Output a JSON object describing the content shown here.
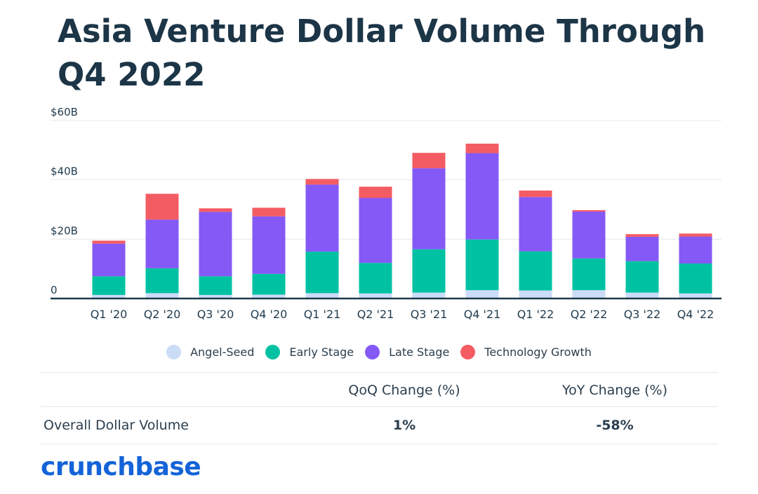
{
  "title": "Asia Venture Dollar Volume Through Q4 2022",
  "legend": {
    "angel_seed": "Angel-Seed",
    "early": "Early Stage",
    "late": "Late Stage",
    "growth": "Technology Growth"
  },
  "colors": {
    "angel_seed": "#cbdcf7",
    "early": "#00c2a2",
    "late": "#8459f6",
    "growth": "#f45c63",
    "axis": "#1f3a4d",
    "grid": "#e6e8eb",
    "brand": "#1463d8"
  },
  "table": {
    "header_qoq": "QoQ Change (%)",
    "header_yoy": "YoY Change (%)",
    "row_label": "Overall Dollar Volume",
    "qoq": "1%",
    "yoy": "-58%"
  },
  "brand": "crunchbase",
  "chart_data": {
    "type": "bar",
    "stacked": true,
    "title": "Asia Venture Dollar Volume Through Q4 2022",
    "xlabel": "",
    "ylabel": "",
    "ylim": [
      0,
      60
    ],
    "yticks": [
      0,
      20,
      40,
      60
    ],
    "ytick_labels": [
      "0",
      "$20B",
      "$40B",
      "$60B"
    ],
    "grid": true,
    "legend_position": "bottom",
    "categories": [
      "Q1 '20",
      "Q2 '20",
      "Q3 '20",
      "Q4 '20",
      "Q1 '21",
      "Q2 '21",
      "Q3 '21",
      "Q4 '21",
      "Q1 '22",
      "Q2 '22",
      "Q3 '22",
      "Q4 '22"
    ],
    "series": [
      {
        "name": "Angel-Seed",
        "color": "#cbdcf7",
        "values": [
          1.2,
          1.8,
          1.2,
          1.3,
          1.8,
          1.7,
          2.0,
          2.8,
          2.7,
          2.8,
          2.0,
          1.7
        ]
      },
      {
        "name": "Early Stage",
        "color": "#00c2a2",
        "values": [
          6.3,
          8.4,
          6.3,
          7.0,
          14.0,
          10.3,
          14.6,
          17.1,
          13.2,
          10.7,
          10.6,
          10.1
        ]
      },
      {
        "name": "Late Stage",
        "color": "#8459f6",
        "values": [
          11.0,
          16.4,
          21.7,
          19.4,
          22.6,
          21.9,
          27.3,
          29.1,
          18.3,
          15.8,
          8.2,
          9.1
        ]
      },
      {
        "name": "Technology Growth",
        "color": "#f45c63",
        "values": [
          1.0,
          8.7,
          1.2,
          2.9,
          1.9,
          3.8,
          5.2,
          3.2,
          2.2,
          0.5,
          0.9,
          1.0
        ]
      }
    ]
  }
}
